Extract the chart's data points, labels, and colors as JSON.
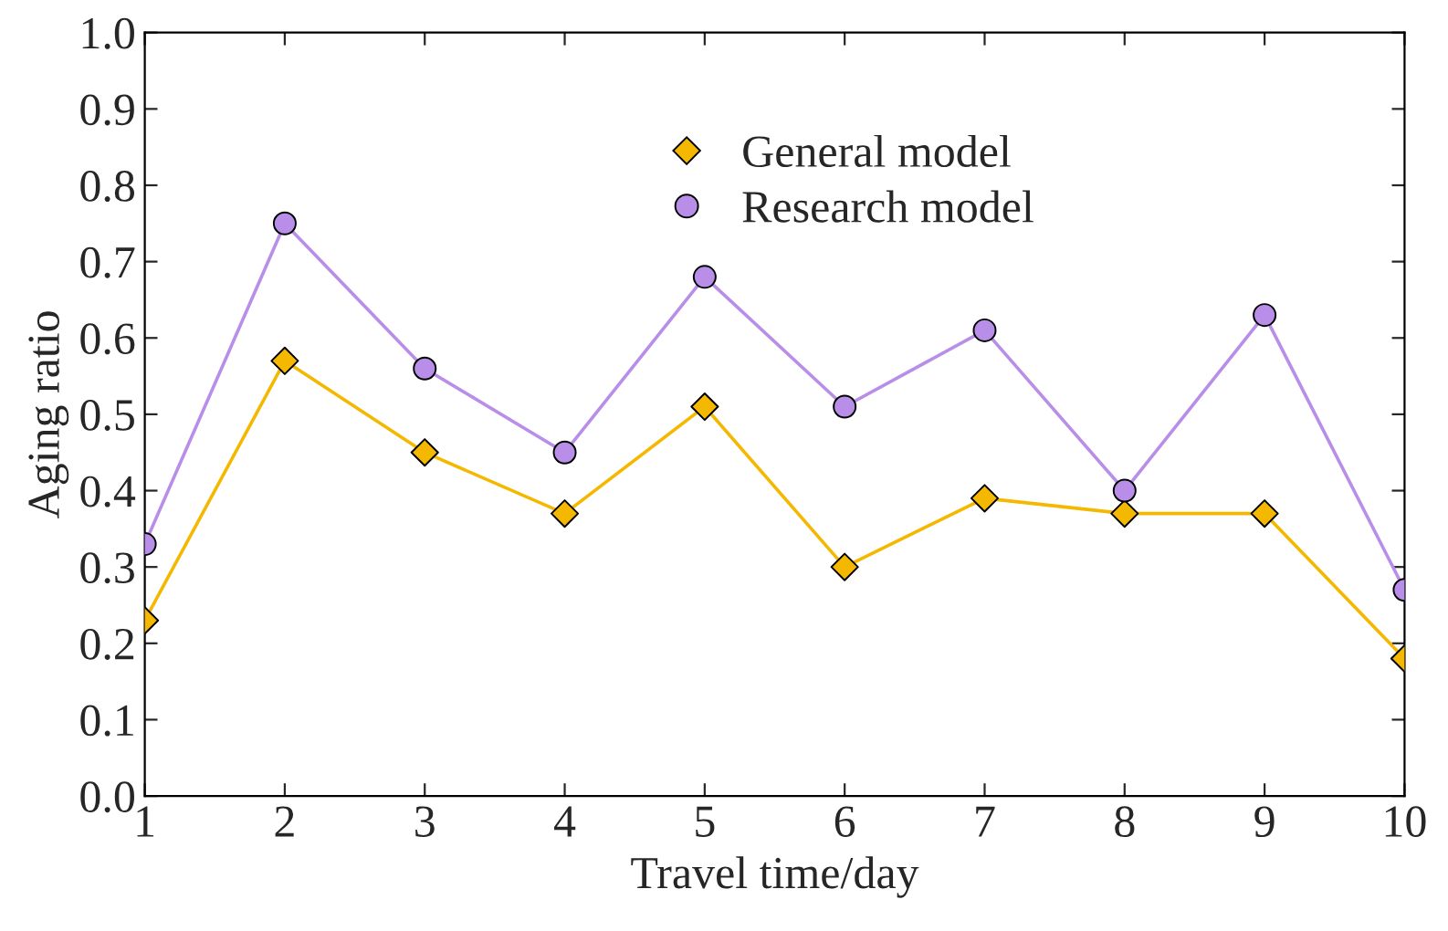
{
  "chart_data": {
    "type": "line",
    "xlabel": "Travel time/day",
    "ylabel": "Aging ratio",
    "x": [
      1,
      2,
      3,
      4,
      5,
      6,
      7,
      8,
      9,
      10
    ],
    "series": [
      {
        "name": "General model",
        "color": "#f5b800",
        "marker": "diamond",
        "values": [
          0.23,
          0.57,
          0.45,
          0.37,
          0.51,
          0.3,
          0.39,
          0.37,
          0.37,
          0.18
        ]
      },
      {
        "name": "Research model",
        "color": "#b98ee8",
        "marker": "circle",
        "values": [
          0.33,
          0.75,
          0.56,
          0.45,
          0.68,
          0.51,
          0.61,
          0.4,
          0.63,
          0.27
        ]
      }
    ],
    "xlim": [
      1,
      10
    ],
    "xticks": [
      1,
      2,
      3,
      4,
      5,
      6,
      7,
      8,
      9,
      10
    ],
    "ylim": [
      0,
      1
    ],
    "yticks": [
      {
        "value": 0,
        "label": "0.0"
      },
      0.1,
      0.2,
      0.3,
      0.4,
      0.5,
      0.6,
      0.7,
      0.8,
      0.9,
      {
        "value": 1,
        "label": "1.0"
      }
    ],
    "grid": false,
    "legend": "top",
    "line_style": "solid"
  }
}
